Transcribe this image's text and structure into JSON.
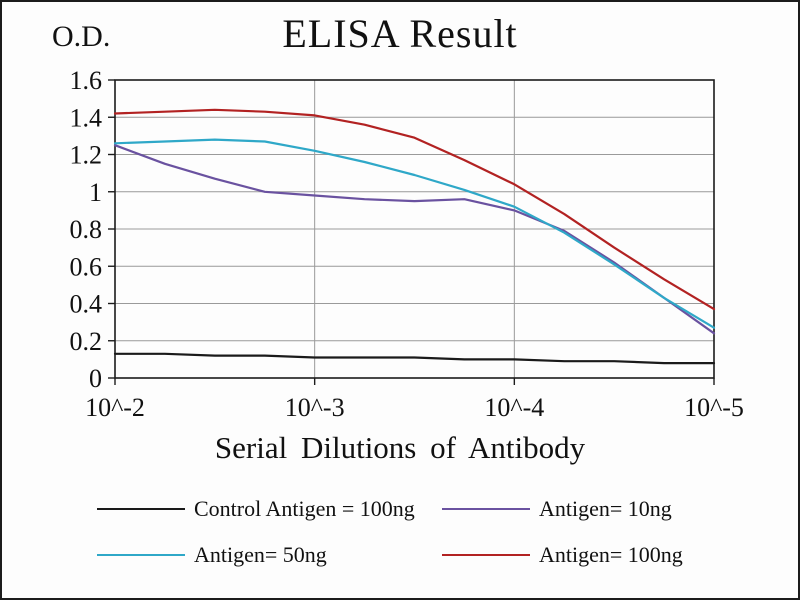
{
  "chart_data": {
    "type": "line",
    "title": "ELISA Result",
    "ylabel": "O.D.",
    "xlabel": "Serial Dilutions of Antibody",
    "x_tick_labels": [
      "10^-2",
      "10^-3",
      "10^-4",
      "10^-5"
    ],
    "y_tick_labels": [
      "0",
      "0.2",
      "0.4",
      "0.6",
      "0.8",
      "1",
      "1.2",
      "1.4",
      "1.6"
    ],
    "xlim": [
      0,
      3
    ],
    "ylim": [
      0,
      1.6
    ],
    "grid": true,
    "legend_position": "bottom",
    "grid_color": "#9a9a9a",
    "axis_color": "#1c1c1c",
    "x": [
      0,
      0.25,
      0.5,
      0.75,
      1,
      1.25,
      1.5,
      1.75,
      2,
      2.25,
      2.5,
      2.75,
      3
    ],
    "series": [
      {
        "key": "control-antigen-100ng",
        "name": "Control Antigen = 100ng",
        "color": "#1a1a1a",
        "values": [
          0.13,
          0.13,
          0.12,
          0.12,
          0.11,
          0.11,
          0.11,
          0.1,
          0.1,
          0.09,
          0.09,
          0.08,
          0.08
        ]
      },
      {
        "key": "antigen-10ng",
        "name": "Antigen= 10ng",
        "color": "#6a52a0",
        "values": [
          1.25,
          1.15,
          1.07,
          1.0,
          0.98,
          0.96,
          0.95,
          0.96,
          0.9,
          0.79,
          0.62,
          0.43,
          0.24
        ]
      },
      {
        "key": "antigen-50ng",
        "name": "Antigen= 50ng",
        "color": "#2fa8c8",
        "values": [
          1.26,
          1.27,
          1.28,
          1.27,
          1.22,
          1.16,
          1.09,
          1.01,
          0.92,
          0.78,
          0.61,
          0.43,
          0.27
        ]
      },
      {
        "key": "antigen-100ng",
        "name": "Antigen= 100ng",
        "color": "#b22222",
        "values": [
          1.42,
          1.43,
          1.44,
          1.43,
          1.41,
          1.36,
          1.29,
          1.17,
          1.04,
          0.88,
          0.7,
          0.53,
          0.37
        ]
      }
    ]
  }
}
